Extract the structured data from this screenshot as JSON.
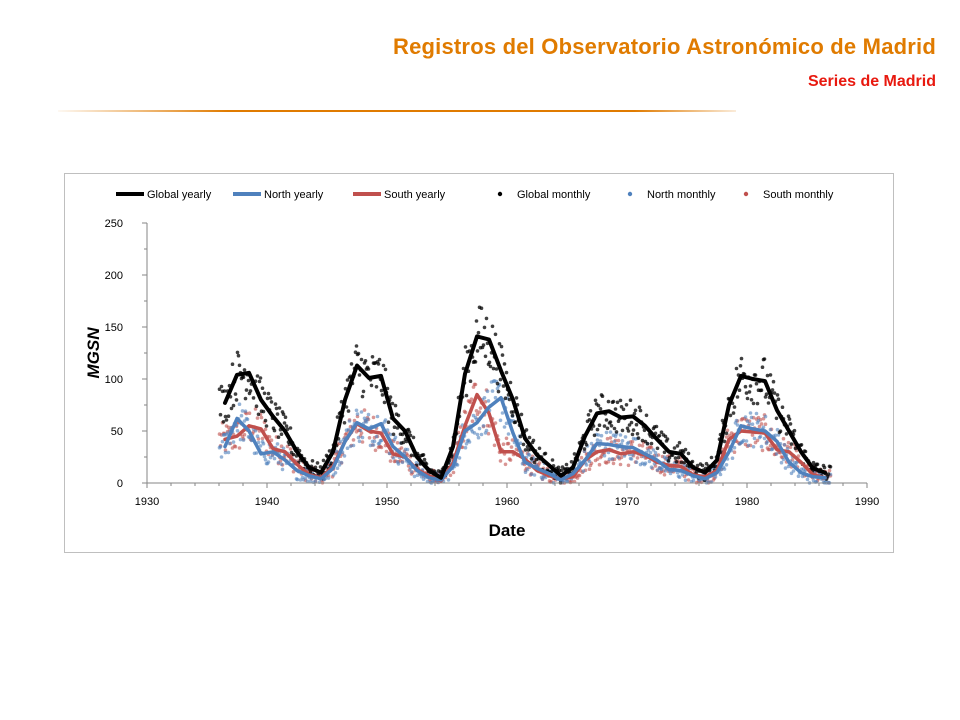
{
  "header": {
    "title": "Registros del Observatorio Astronómico de Madrid",
    "subtitle": "Series de Madrid"
  },
  "colors": {
    "title": "#e07b00",
    "subtitle": "#e8190f",
    "global": "#000000",
    "north": "#4f81bd",
    "south": "#c0504d"
  },
  "chart_data": {
    "type": "line",
    "title": "",
    "xlabel": "Date",
    "ylabel": "MGSN",
    "xlim": [
      1930,
      1990
    ],
    "ylim": [
      0,
      250
    ],
    "xticks": [
      "1930",
      "1940",
      "1950",
      "1960",
      "1970",
      "1980",
      "1990"
    ],
    "yticks": [
      "0",
      "50",
      "100",
      "150",
      "200",
      "250"
    ],
    "grid": false,
    "legend_position": "top",
    "legend": [
      "Global yearly",
      "North yearly",
      "South yearly",
      "Global monthly",
      "North monthly",
      "South monthly"
    ],
    "x": [
      1936.5,
      1937.5,
      1938.5,
      1939.5,
      1940.5,
      1941.5,
      1942.5,
      1943.5,
      1944.5,
      1945.5,
      1946.5,
      1947.5,
      1948.5,
      1949.5,
      1950.5,
      1951.5,
      1952.5,
      1953.5,
      1954.5,
      1955.5,
      1956.5,
      1957.5,
      1958.5,
      1959.5,
      1960.5,
      1961.5,
      1962.5,
      1963.5,
      1964.5,
      1965.5,
      1966.5,
      1967.5,
      1968.5,
      1969.5,
      1970.5,
      1971.5,
      1972.5,
      1973.5,
      1974.5,
      1975.5,
      1976.5,
      1977.5,
      1978.5,
      1979.5,
      1980.5,
      1981.5,
      1982.5,
      1983.5,
      1984.5,
      1985.5,
      1986.5
    ],
    "series": [
      {
        "name": "Global yearly",
        "kind": "line",
        "color": "#000000",
        "values": [
          77,
          104,
          106,
          80,
          64,
          50,
          30,
          15,
          10,
          30,
          80,
          113,
          101,
          103,
          62,
          50,
          25,
          12,
          5,
          35,
          105,
          141,
          138,
          108,
          80,
          43,
          27,
          17,
          7,
          15,
          45,
          67,
          69,
          63,
          64,
          55,
          42,
          30,
          28,
          15,
          10,
          22,
          75,
          103,
          100,
          98,
          70,
          50,
          30,
          14,
          10
        ]
      },
      {
        "name": "North yearly",
        "kind": "line",
        "color": "#4f81bd",
        "values": [
          35,
          62,
          50,
          28,
          30,
          22,
          12,
          7,
          4,
          14,
          40,
          58,
          52,
          57,
          35,
          25,
          12,
          5,
          3,
          16,
          50,
          58,
          73,
          82,
          48,
          20,
          14,
          9,
          3,
          9,
          22,
          38,
          37,
          35,
          34,
          28,
          22,
          13,
          12,
          7,
          4,
          10,
          30,
          55,
          52,
          50,
          40,
          20,
          10,
          6,
          5
        ]
      },
      {
        "name": "South yearly",
        "kind": "line",
        "color": "#c0504d",
        "values": [
          42,
          45,
          55,
          52,
          33,
          30,
          18,
          8,
          5,
          16,
          40,
          57,
          50,
          48,
          28,
          25,
          13,
          7,
          2,
          19,
          55,
          85,
          67,
          30,
          30,
          23,
          12,
          7,
          4,
          6,
          22,
          30,
          32,
          28,
          30,
          27,
          20,
          17,
          16,
          8,
          6,
          12,
          42,
          50,
          49,
          48,
          32,
          30,
          20,
          8,
          5
        ]
      },
      {
        "name": "Global monthly",
        "kind": "scatter",
        "color": "#000000",
        "values": []
      },
      {
        "name": "North monthly",
        "kind": "scatter",
        "color": "#4f81bd",
        "values": []
      },
      {
        "name": "South monthly",
        "kind": "scatter",
        "color": "#c0504d",
        "values": []
      }
    ]
  }
}
